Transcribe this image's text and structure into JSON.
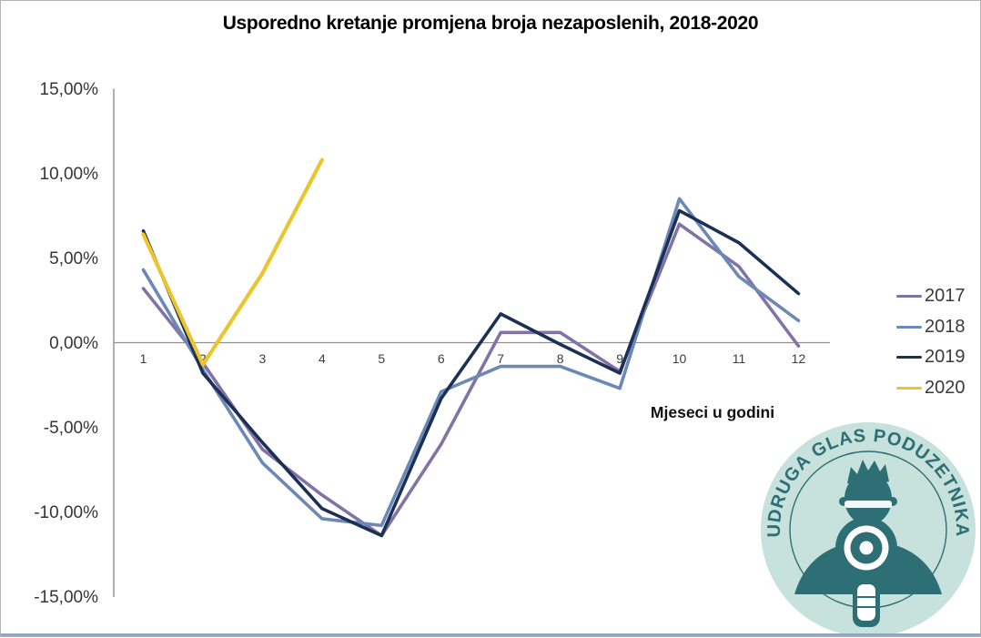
{
  "title": "Usporedno kretanje promjena broja nezaposlenih, 2018-2020",
  "chart_data": {
    "type": "line",
    "title": "Usporedno kretanje promjena broja nezaposlenih, 2018-2020",
    "xlabel": "Mjeseci u godini",
    "ylabel": "",
    "ylim": [
      -15,
      15
    ],
    "grid": false,
    "legend_position": "right",
    "x_ticks": [
      "1",
      "2",
      "3",
      "4",
      "5",
      "6",
      "7",
      "8",
      "9",
      "10",
      "11",
      "12"
    ],
    "y_ticks": [
      {
        "label": "15,00%",
        "value": 15
      },
      {
        "label": "10,00%",
        "value": 10
      },
      {
        "label": "5,00%",
        "value": 5
      },
      {
        "label": "0,00%",
        "value": 0
      },
      {
        "label": "-5,00%",
        "value": -5
      },
      {
        "label": "-10,00%",
        "value": -10
      },
      {
        "label": "-15,00%",
        "value": -15
      }
    ],
    "series": [
      {
        "name": "2017",
        "color": "#8173a5",
        "values": [
          3.2,
          -1.2,
          -6.3,
          -9.0,
          -11.4,
          -6.0,
          0.6,
          0.6,
          -1.7,
          7.0,
          4.5,
          -0.2
        ]
      },
      {
        "name": "2018",
        "color": "#6c89b5",
        "values": [
          4.3,
          -1.6,
          -7.1,
          -10.4,
          -10.8,
          -2.9,
          -1.4,
          -1.4,
          -2.7,
          8.5,
          3.9,
          1.3
        ]
      },
      {
        "name": "2019",
        "color": "#1b2f57",
        "values": [
          6.6,
          -1.8,
          -5.9,
          -9.8,
          -11.4,
          -3.3,
          1.7,
          -0.1,
          -1.8,
          7.8,
          5.9,
          2.9
        ]
      },
      {
        "name": "2020",
        "color": "#ecc42e",
        "values": [
          6.4,
          -1.3,
          4.1,
          10.8
        ]
      }
    ]
  },
  "watermark": {
    "text": "UDRUGA GLAS PODUZETNIKA",
    "badge_fill": "#c7e1dd",
    "accent": "#2d6f74"
  }
}
